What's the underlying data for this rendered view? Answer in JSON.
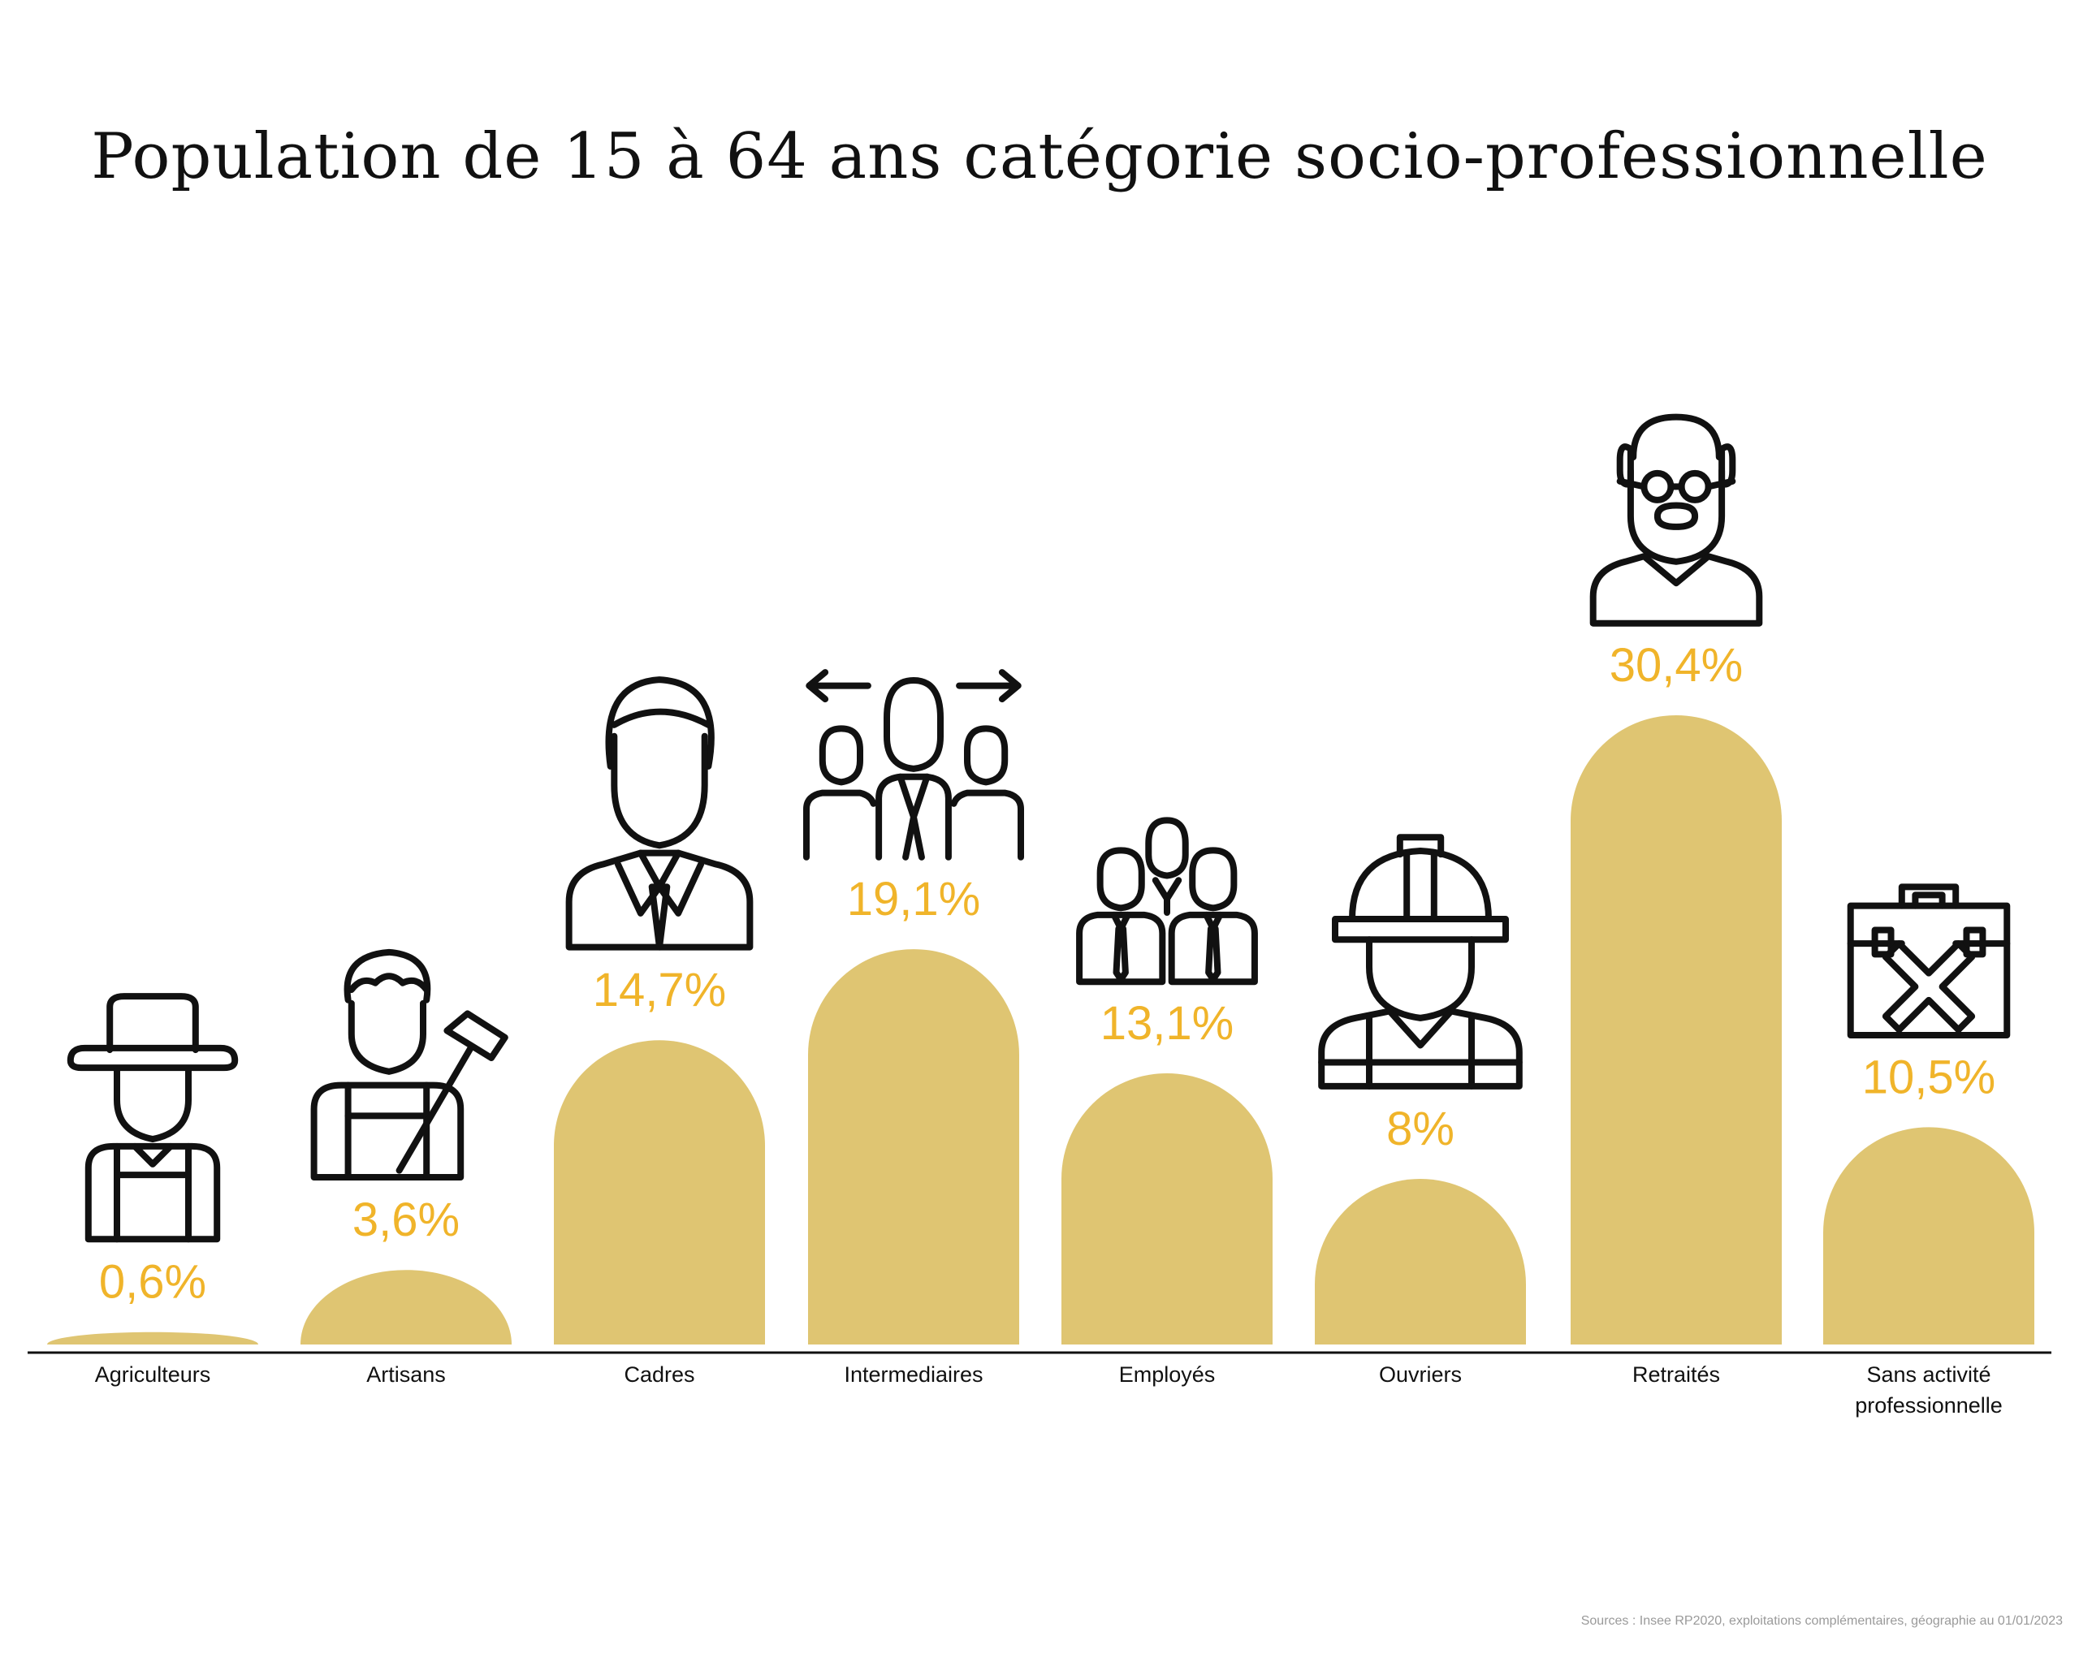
{
  "chart_data": {
    "type": "bar",
    "title": "Population de 15 à 64 ans catégorie socio-professionnelle",
    "categories": [
      "Agriculteurs",
      "Artisans",
      "Cadres",
      "Intermediaires",
      "Employés",
      "Ouvriers",
      "Retraités",
      "Sans activité professionnelle"
    ],
    "values": [
      0.6,
      3.6,
      14.7,
      19.1,
      13.1,
      8,
      30.4,
      10.5
    ],
    "value_labels": [
      "0,6%",
      "3,6%",
      "14,7%",
      "19,1%",
      "13,1%",
      "8%",
      "30,4%",
      "10,5%"
    ],
    "icons": [
      "farmer-icon",
      "craftsman-icon",
      "manager-icon",
      "team-leader-icon",
      "employees-group-icon",
      "construction-worker-icon",
      "retiree-icon",
      "unemployed-briefcase-icon"
    ],
    "ylim": [
      0,
      30.4
    ],
    "grid": false,
    "legend": "none",
    "colors": {
      "bar": "#dfc572",
      "value_label": "#f0b42a",
      "axis": "#111111",
      "icon": "#111111"
    }
  },
  "source": "Sources : Insee RP2020, exploitations complémentaires, géographie au 01/01/2023"
}
